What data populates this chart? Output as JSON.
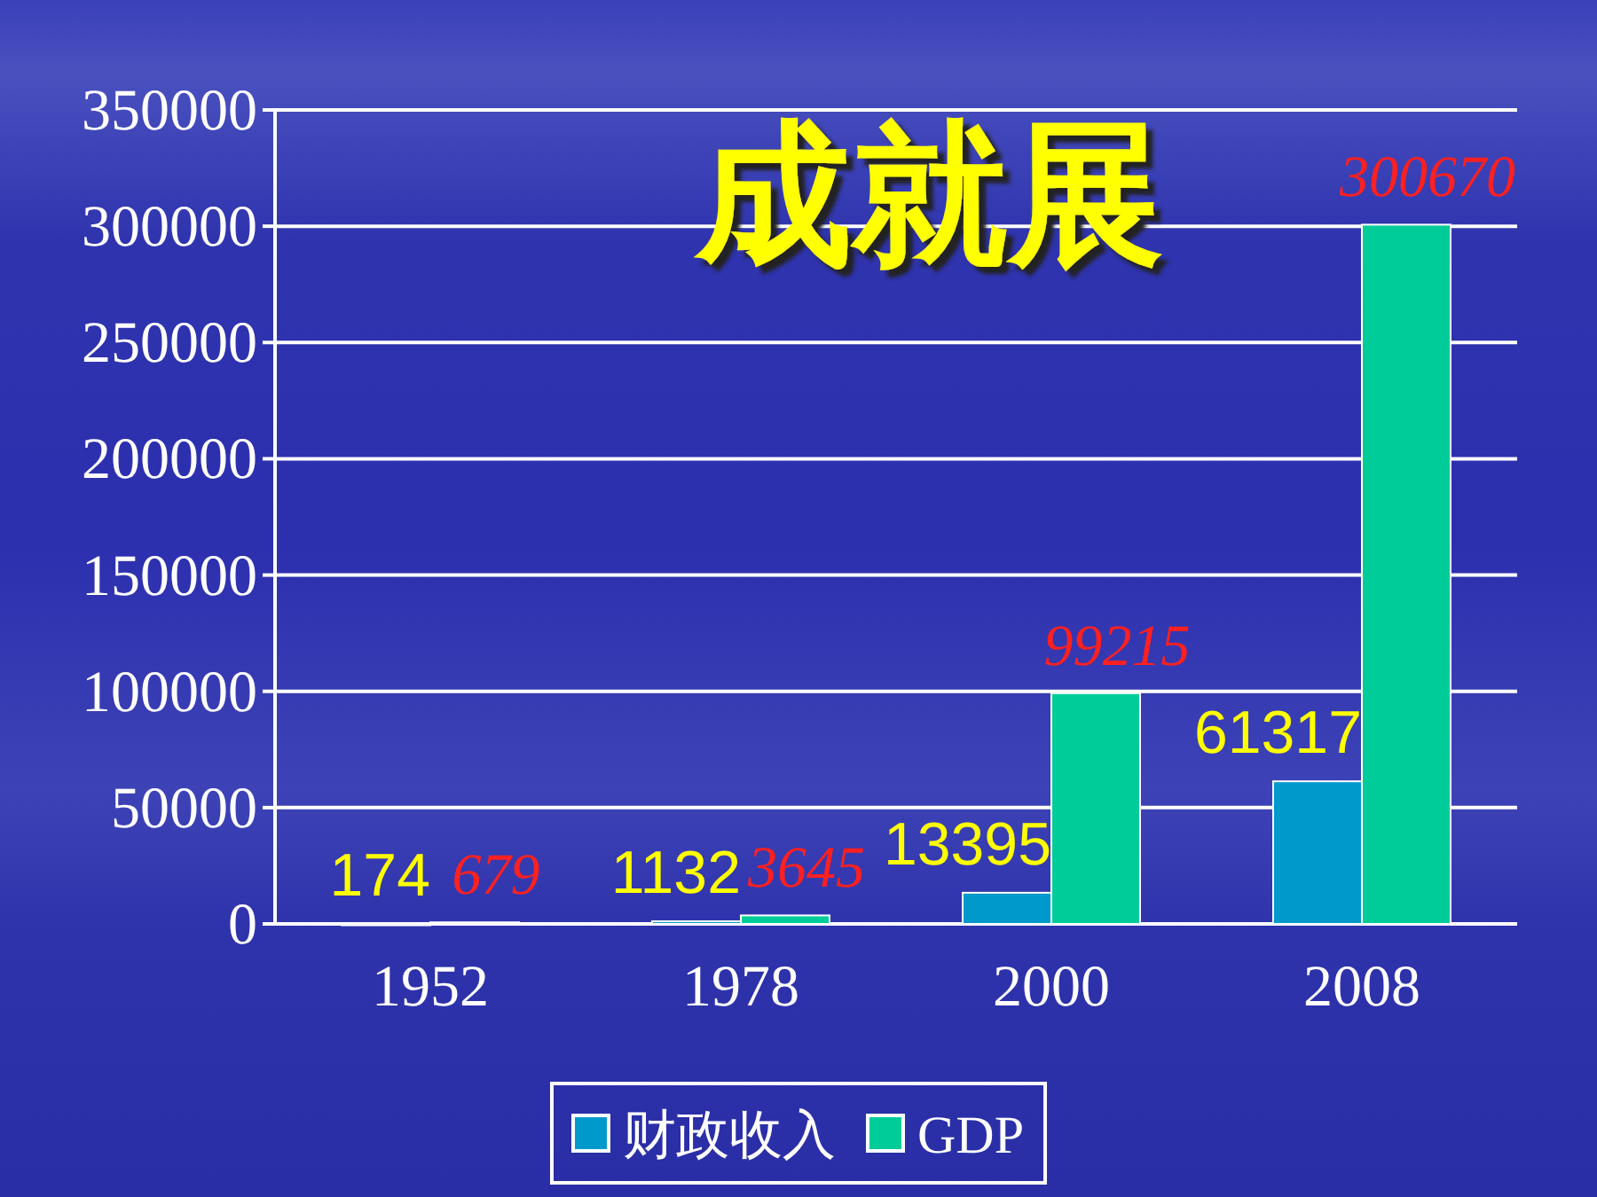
{
  "chart_data": {
    "type": "bar",
    "title": "成就展",
    "categories": [
      "1952",
      "1978",
      "2000",
      "2008"
    ],
    "series": [
      {
        "name": "财政收入",
        "color": "#0099cc",
        "values": [
          174,
          1132,
          13395,
          61317
        ]
      },
      {
        "name": "GDP",
        "color": "#00cc99",
        "values": [
          679,
          3645,
          99215,
          300670
        ]
      }
    ],
    "ylim": [
      0,
      350000
    ],
    "yticks": [
      0,
      50000,
      100000,
      150000,
      200000,
      250000,
      300000,
      350000
    ],
    "grid": "y",
    "legend": "bottom",
    "data_labels": true
  }
}
